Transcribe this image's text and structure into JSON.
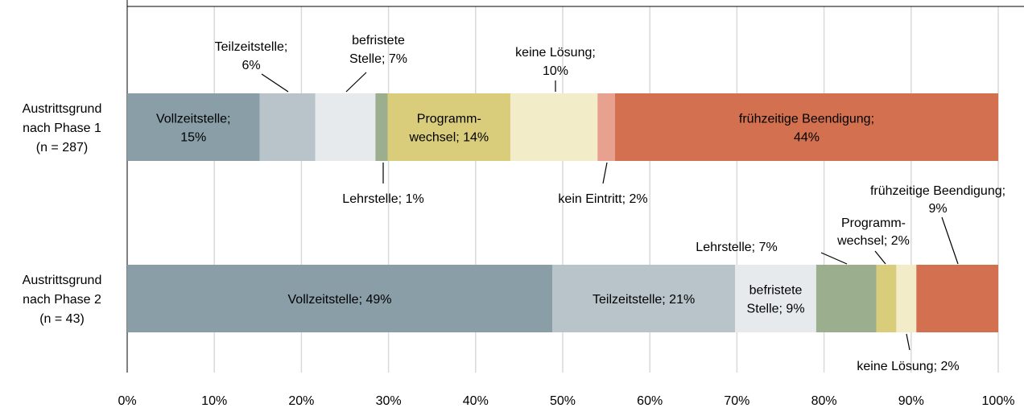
{
  "chart_data": {
    "type": "stacked-bar-horizontal",
    "categories": [
      [
        "Austrittsgrund",
        "nach Phase 1",
        "(n = 287)"
      ],
      [
        "Austrittsgrund",
        "nach Phase 2",
        "(n = 43)"
      ]
    ],
    "series": [
      {
        "color": "#8a9ea8",
        "values": [
          15.2,
          48.8
        ],
        "value_labels": [
          [
            "Vollzeitstelle;",
            "15%"
          ],
          [
            "Vollzeitstelle; 49%"
          ]
        ]
      },
      {
        "color": "#b8c4c9",
        "values": [
          6.4,
          21.0
        ],
        "value_labels": [
          [
            "Teilzeitstelle;",
            "6%"
          ],
          [
            "Teilzeitstelle; 21%"
          ]
        ]
      },
      {
        "color": "#e6eaec",
        "values": [
          6.9,
          9.3
        ],
        "value_labels": [
          [
            "befristete",
            "Stelle; 7%"
          ],
          [
            "befristete",
            "Stelle; 9%"
          ]
        ]
      },
      {
        "color": "#9baf8f",
        "values": [
          1.4,
          6.9
        ],
        "value_labels": [
          [
            "Lehrstelle; 1%"
          ],
          [
            "Lehrstelle; 7%"
          ]
        ]
      },
      {
        "color": "#d9cd7c",
        "values": [
          14.1,
          2.3
        ],
        "value_labels": [
          [
            "Programm-",
            "wechsel; 14%"
          ],
          [
            "Programm-",
            "wechsel; 2%"
          ]
        ]
      },
      {
        "color": "#f2ecc8",
        "values": [
          10.0,
          2.3
        ],
        "value_labels": [
          [
            "keine Lösung;",
            "10%"
          ],
          [
            "keine Lösung; 2%"
          ]
        ]
      },
      {
        "color": "#e8a08f",
        "values": [
          2.0,
          null
        ],
        "value_labels": [
          [
            "kein Eintritt; 2%"
          ],
          null
        ]
      },
      {
        "color": "#d37050",
        "values": [
          44.0,
          9.4
        ],
        "value_labels": [
          [
            "frühzeitige Beendigung;",
            "44%"
          ],
          [
            "frühzeitige Beendigung;",
            "9%"
          ]
        ]
      }
    ],
    "xlim": [
      0,
      100
    ],
    "xticks": [
      {
        "value": 0,
        "label": "0%"
      },
      {
        "value": 10,
        "label": "10%"
      },
      {
        "value": 20,
        "label": "20%"
      },
      {
        "value": 30,
        "label": "30%"
      },
      {
        "value": 40,
        "label": "40%"
      },
      {
        "value": 50,
        "label": "50%"
      },
      {
        "value": 60,
        "label": "60%"
      },
      {
        "value": 70,
        "label": "70%"
      },
      {
        "value": 80,
        "label": "80%"
      },
      {
        "value": 90,
        "label": "90%"
      },
      {
        "value": 100,
        "label": "100%"
      }
    ],
    "grid": true
  }
}
